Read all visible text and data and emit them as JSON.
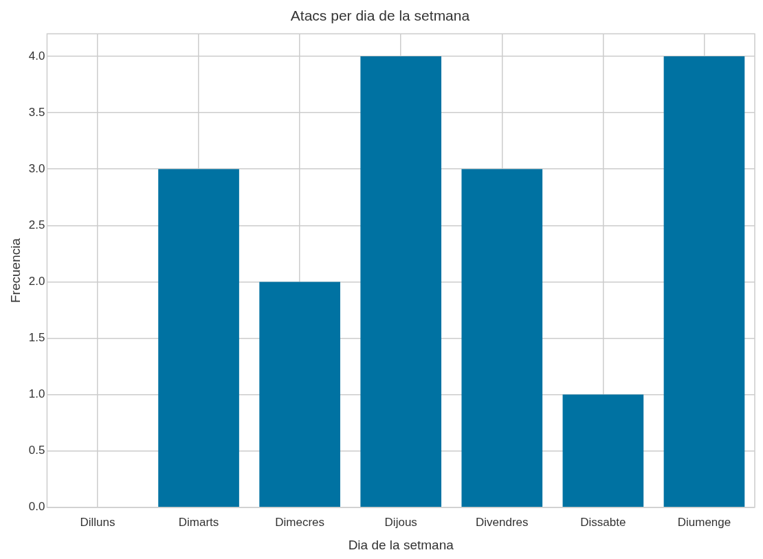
{
  "chart_data": {
    "type": "bar",
    "title": "Atacs per dia de la setmana",
    "xlabel": "Dia de la setmana",
    "ylabel": "Frecuencia",
    "categories": [
      "Dilluns",
      "Dimarts",
      "Dimecres",
      "Dijous",
      "Divendres",
      "Dissabte",
      "Diumenge"
    ],
    "values": [
      0,
      3,
      2,
      4,
      3,
      1,
      4
    ],
    "color": "#0072a2",
    "ylim": [
      0,
      4.2
    ],
    "yticks": [
      {
        "value": 0,
        "label": "0.0"
      },
      {
        "value": 0.5,
        "label": "0.5"
      },
      {
        "value": 1,
        "label": "1.0"
      },
      {
        "value": 1.5,
        "label": "1.5"
      },
      {
        "value": 2,
        "label": "2.0"
      },
      {
        "value": 2.5,
        "label": "2.5"
      },
      {
        "value": 3,
        "label": "3.0"
      },
      {
        "value": 3.5,
        "label": "3.5"
      },
      {
        "value": 4,
        "label": "4.0"
      }
    ],
    "grid": true,
    "legend": false
  }
}
